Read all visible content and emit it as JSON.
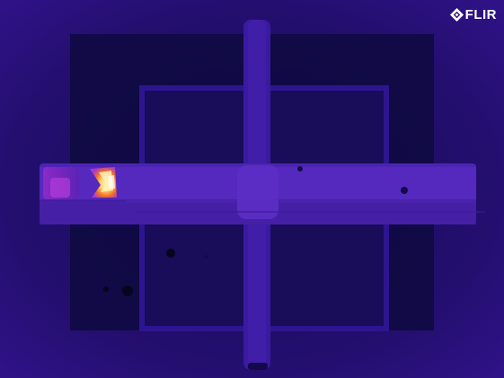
{
  "image": {
    "type": "thermal camera image",
    "palette": "iron",
    "colors": {
      "background": "#2a0f7a",
      "dark_region": "#0d0838",
      "frame": "#3a1aa0",
      "hot_low": "#b43cd8",
      "hot_mid": "#f0782c",
      "hot_high": "#fff1b4"
    }
  },
  "branding": {
    "logo_text": "FLIR",
    "logo_icon": "flir-diamond-icon"
  }
}
